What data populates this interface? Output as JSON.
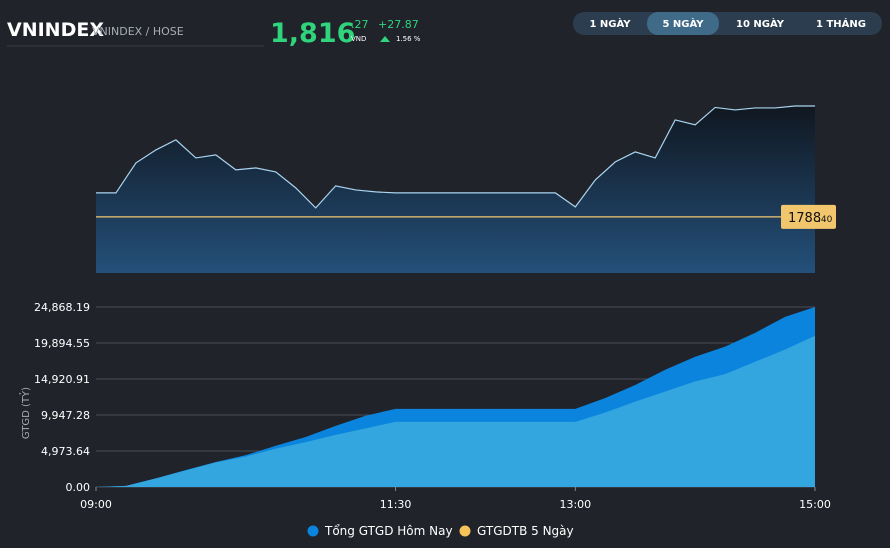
{
  "header": {
    "symbol": "VNINDEX",
    "exchange": "VNINDEX / HOSE",
    "price": "1,816",
    "price_decimal": ".27",
    "currency": "VND",
    "change": "+27.87",
    "change_percent": "1.56 %"
  },
  "tabs": {
    "items": [
      "1 NGÀY",
      "5 NGÀY",
      "10 NGÀY",
      "1 THÁNG"
    ],
    "active": 1
  },
  "chart_data": [
    {
      "type": "line",
      "color": "#a9d4f0",
      "x": [
        "09:00",
        "09:10",
        "09:20",
        "09:30",
        "09:40",
        "09:50",
        "10:00",
        "10:10",
        "10:20",
        "10:30",
        "10:40",
        "10:50",
        "11:00",
        "11:10",
        "11:20",
        "11:30",
        "11:40",
        "11:50",
        "12:00",
        "12:10",
        "12:20",
        "12:30",
        "12:40",
        "12:50",
        "13:00",
        "13:10",
        "13:20",
        "13:30",
        "13:40",
        "13:50",
        "14:00",
        "14:10",
        "14:20",
        "14:30",
        "14:40",
        "14:50",
        "15:00"
      ],
      "values": [
        1794.43,
        1794.43,
        1801.97,
        1805.23,
        1807.75,
        1803.22,
        1803.98,
        1800.21,
        1800.71,
        1799.71,
        1795.69,
        1790.66,
        1796.19,
        1795.18,
        1794.68,
        1794.43,
        1794.43,
        1794.43,
        1794.43,
        1794.43,
        1794.43,
        1794.43,
        1794.43,
        1794.43,
        1790.91,
        1797.7,
        1802.22,
        1804.73,
        1803.22,
        1812.77,
        1811.52,
        1815.9,
        1815.28,
        1815.78,
        1815.78,
        1816.27,
        1816.27
      ],
      "xlim": [
        "09:00",
        "15:00"
      ],
      "ylim": [
        1774.3,
        1822.8
      ],
      "reference": {
        "value": 1788.4,
        "label": "1788",
        "label_decimal": ".40",
        "color": "#f2c66d"
      }
    },
    {
      "type": "area",
      "y_label": "GTGD (TỶ)",
      "grid": true,
      "x": [
        "09:00",
        "09:15",
        "09:30",
        "09:45",
        "10:00",
        "10:15",
        "10:30",
        "10:45",
        "11:00",
        "11:15",
        "11:30",
        "11:45",
        "12:00",
        "12:15",
        "12:30",
        "12:45",
        "13:00",
        "13:15",
        "13:30",
        "13:45",
        "14:00",
        "14:15",
        "14:30",
        "14:45",
        "15:00"
      ],
      "series": [
        {
          "name": "Tổng GTGD Hôm Nay",
          "color": "#0b84dd",
          "values": [
            0,
            150,
            1200,
            2350,
            3450,
            4400,
            5700,
            6900,
            8450,
            9850,
            10800,
            10800,
            10800,
            10800,
            10800,
            10800,
            10800,
            12300,
            14100,
            16200,
            18000,
            19400,
            21300,
            23500,
            24868.19
          ]
        },
        {
          "name": "GTGDTB 5 Ngày",
          "color": "#f5c35a",
          "fill": "#33a5df",
          "values": [
            0,
            150,
            1200,
            2300,
            3400,
            4200,
            5300,
            6200,
            7200,
            8100,
            9000,
            9000,
            9000,
            9000,
            9000,
            9000,
            9000,
            10300,
            11800,
            13200,
            14600,
            15600,
            17300,
            19000,
            20900
          ]
        }
      ],
      "xlim": [
        "09:00",
        "15:00"
      ],
      "xticks": [
        "09:00",
        "11:30",
        "13:00",
        "15:00"
      ],
      "ylim": [
        0,
        24868.19
      ],
      "yticks": [
        {
          "value": 0,
          "label": "0.00"
        },
        {
          "value": 4973.64,
          "label": "4,973.64"
        },
        {
          "value": 9947.28,
          "label": "9,947.28"
        },
        {
          "value": 14920.91,
          "label": "14,920.91"
        },
        {
          "value": 19894.55,
          "label": "19,894.55"
        },
        {
          "value": 24868.19,
          "label": "24,868.19"
        }
      ]
    }
  ]
}
